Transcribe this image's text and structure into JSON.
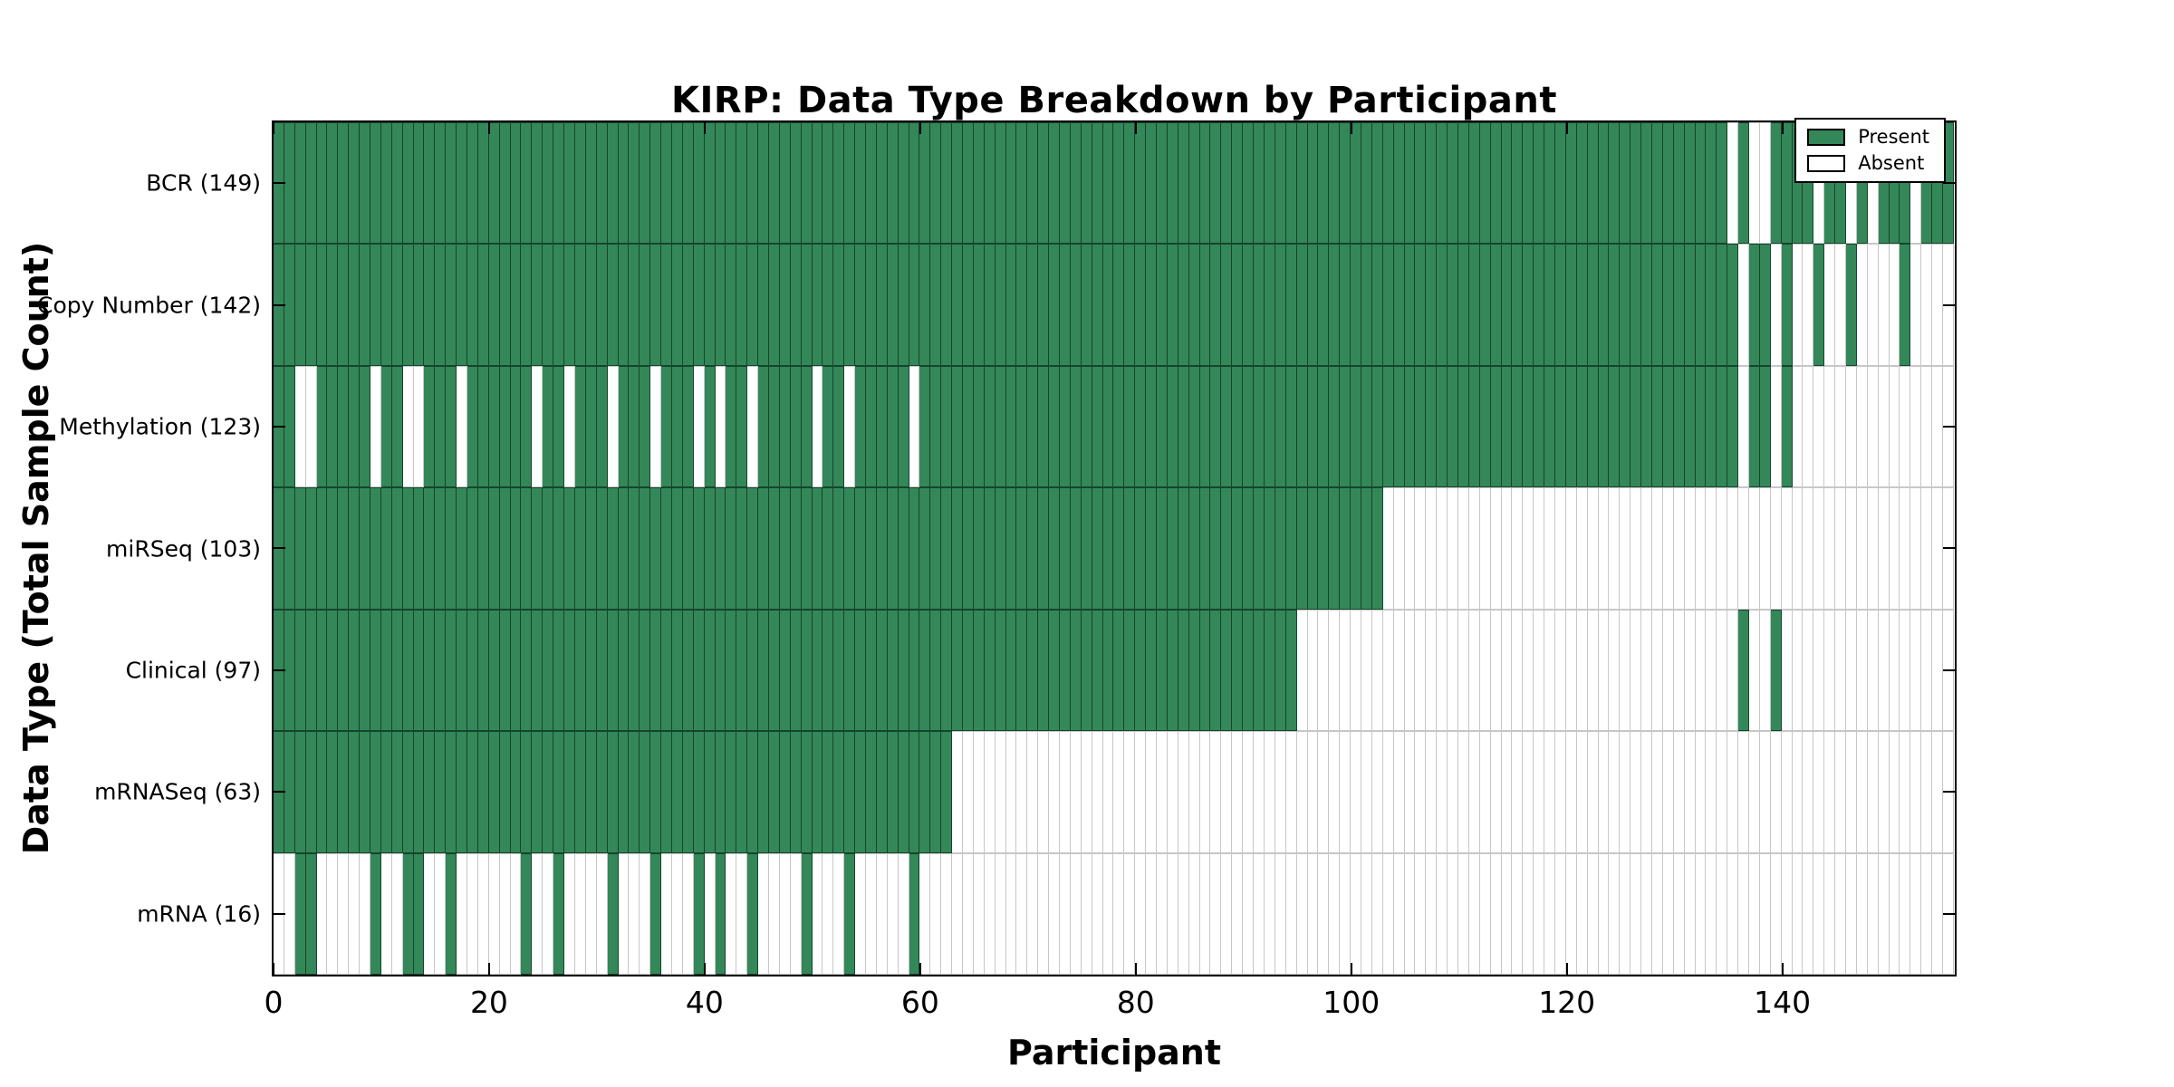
{
  "chart_data": {
    "type": "heatmap",
    "title": "KIRP: Data Type Breakdown by Participant",
    "xlabel": "Participant",
    "ylabel": "Data Type (Total Sample Count)",
    "x_ticks": [
      0,
      20,
      40,
      60,
      80,
      100,
      120,
      140
    ],
    "n_participants": 156,
    "xlim": [
      0,
      156
    ],
    "grid": "off",
    "legend_position": "upper-right-inside",
    "legend": [
      {
        "label": "Present",
        "type": "present"
      },
      {
        "label": "Absent",
        "type": "absent"
      }
    ],
    "colors": {
      "present": "#348758",
      "absent": "#ffffff",
      "present_edge": "rgba(8,42,26,0.70)",
      "absent_edge": "rgba(0,0,0,0.22)",
      "axis": "#000000",
      "background": "#ffffff"
    },
    "rows": [
      {
        "label": "BCR (149)",
        "data_type": "BCR",
        "count": 149,
        "present_ranges": [
          [
            0,
            134
          ],
          [
            136,
            136
          ],
          [
            139,
            142
          ],
          [
            144,
            145
          ],
          [
            147,
            147
          ],
          [
            149,
            151
          ],
          [
            153,
            155
          ]
        ]
      },
      {
        "label": "Copy Number (142)",
        "data_type": "Copy Number",
        "count": 142,
        "present_ranges": [
          [
            0,
            135
          ],
          [
            137,
            138
          ],
          [
            140,
            140
          ],
          [
            143,
            143
          ],
          [
            146,
            146
          ],
          [
            151,
            151
          ]
        ]
      },
      {
        "label": "Methylation (123)",
        "data_type": "Methylation",
        "count": 123,
        "present_ranges": [
          [
            0,
            1
          ],
          [
            4,
            8
          ],
          [
            10,
            11
          ],
          [
            14,
            16
          ],
          [
            18,
            23
          ],
          [
            25,
            26
          ],
          [
            28,
            30
          ],
          [
            32,
            34
          ],
          [
            36,
            38
          ],
          [
            40,
            40
          ],
          [
            42,
            43
          ],
          [
            45,
            49
          ],
          [
            51,
            52
          ],
          [
            54,
            58
          ],
          [
            60,
            135
          ],
          [
            137,
            138
          ],
          [
            140,
            140
          ]
        ]
      },
      {
        "label": "miRSeq (103)",
        "data_type": "miRSeq",
        "count": 103,
        "present_ranges": [
          [
            0,
            102
          ]
        ]
      },
      {
        "label": "Clinical (97)",
        "data_type": "Clinical",
        "count": 97,
        "present_ranges": [
          [
            0,
            94
          ],
          [
            136,
            136
          ],
          [
            139,
            139
          ]
        ]
      },
      {
        "label": "mRNASeq (63)",
        "data_type": "mRNASeq",
        "count": 63,
        "present_ranges": [
          [
            0,
            62
          ]
        ]
      },
      {
        "label": "mRNA (16)",
        "data_type": "mRNA",
        "count": 16,
        "present_ranges": [
          [
            2,
            3
          ],
          [
            9,
            9
          ],
          [
            12,
            13
          ],
          [
            16,
            16
          ],
          [
            23,
            23
          ],
          [
            26,
            26
          ],
          [
            31,
            31
          ],
          [
            35,
            35
          ],
          [
            39,
            39
          ],
          [
            41,
            41
          ],
          [
            44,
            44
          ],
          [
            49,
            49
          ],
          [
            53,
            53
          ],
          [
            59,
            59
          ]
        ]
      }
    ]
  }
}
